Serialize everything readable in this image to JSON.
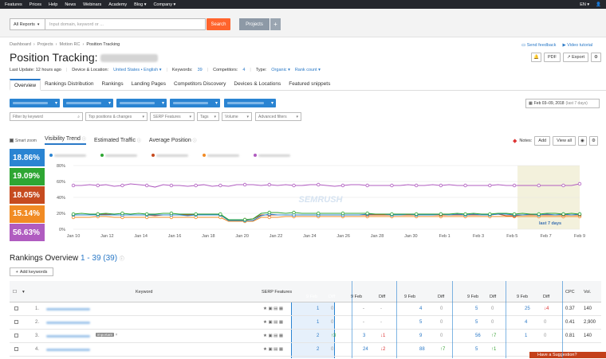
{
  "topnav": {
    "items": [
      "Features",
      "Prices",
      "Help",
      "News",
      "Webinars",
      "Academy",
      "Blog ▾",
      "Company ▾"
    ],
    "lang": "EN ▾"
  },
  "search": {
    "scope": "All Reports",
    "placeholder": "Input domain, keyword or ...",
    "button": "Search",
    "projects": "Projects",
    "plus": "+"
  },
  "breadcrumb": [
    "Dashboard",
    "Projects",
    "Motion RC",
    "Position Tracking"
  ],
  "page": {
    "title": "Position Tracking:",
    "last_update": "Last Update: 12 hours ago",
    "device_label": "Device & Location:",
    "device_value": "United States • English ▾",
    "keywords_label": "Keywords:",
    "keywords_value": "39",
    "competitors_label": "Competitors:",
    "competitors_value": "4",
    "type_label": "Type:",
    "type_value": "Organic ▾",
    "rank_count": "Rank count ▾",
    "send_feedback": "Send feedback",
    "video_tutorial": "Video tutorial",
    "pdf": "PDF",
    "export": "Export"
  },
  "tabs": [
    "Overview",
    "Rankings Distribution",
    "Rankings",
    "Landing Pages",
    "Competitors Discovery",
    "Devices & Locations",
    "Featured snippets"
  ],
  "filters": {
    "date_range": "Feb 03–09, 2018",
    "date_sub": "(last 7 days)",
    "keyword_placeholder": "Filter by keyword",
    "dropdowns": [
      "Top positions & changes",
      "SERP Features",
      "Tags",
      "Volume",
      "Advanced filters"
    ]
  },
  "chart_tabs": {
    "smart_zoom": "Smart zoom",
    "visibility": "Visibility Trend",
    "traffic": "Estimated Traffic",
    "position": "Average Position",
    "notes": "Notes:",
    "add": "Add",
    "view_all": "View all"
  },
  "tiles": [
    {
      "value": "18.86%",
      "color": "#2a84d2"
    },
    {
      "value": "19.09%",
      "color": "#2ea633"
    },
    {
      "value": "18.05%",
      "color": "#c64b1f"
    },
    {
      "value": "15.14%",
      "color": "#f18b24"
    },
    {
      "value": "56.63%",
      "color": "#b05cc0"
    }
  ],
  "chart_data": {
    "type": "line",
    "ylim": [
      0,
      80
    ],
    "yticks": [
      "80%",
      "60%",
      "40%",
      "20%",
      "0%"
    ],
    "xticks": [
      "Jan 10",
      "Jan 12",
      "Jan 14",
      "Jan 16",
      "Jan 18",
      "Jan 20",
      "Jan 22",
      "Jan 24",
      "Jan 26",
      "Jan 28",
      "Jan 30",
      "Feb 1",
      "Feb 3",
      "Feb 5",
      "Feb 7",
      "Feb 9"
    ],
    "highlight_label": "last 7 days",
    "series": [
      {
        "color": "#b05cc0",
        "values": [
          55,
          55,
          56,
          55,
          56,
          54,
          55,
          57,
          56,
          55,
          53,
          56,
          55,
          55,
          54,
          55,
          56,
          54,
          55,
          54,
          56,
          56,
          56,
          55,
          56,
          55,
          56,
          55,
          55,
          56,
          56,
          55,
          54,
          55,
          56,
          56,
          55,
          55,
          55,
          55,
          55,
          56,
          55,
          55,
          56,
          55,
          56,
          55,
          55,
          55,
          55,
          55,
          56,
          55,
          55,
          55,
          55,
          55,
          55,
          55,
          55,
          55,
          57
        ]
      },
      {
        "color": "#2ea633",
        "values": [
          19,
          20,
          19,
          19,
          20,
          19,
          20,
          19,
          20,
          19,
          19,
          20,
          20,
          19,
          19,
          19,
          19,
          19,
          19,
          12,
          12,
          12,
          13,
          20,
          21,
          21,
          20,
          21,
          20,
          20,
          20,
          20,
          20,
          20,
          20,
          20,
          20,
          19,
          19,
          19,
          19,
          19,
          19,
          19,
          19,
          19,
          19,
          20,
          19,
          20,
          19,
          19,
          20,
          20,
          19,
          20,
          19,
          19,
          20,
          20,
          19,
          20,
          19
        ]
      },
      {
        "color": "#2a84d2",
        "values": [
          18,
          18,
          18,
          18,
          18,
          18,
          18,
          18,
          18,
          18,
          18,
          18,
          18,
          18,
          17,
          18,
          18,
          18,
          18,
          11,
          11,
          11,
          11,
          17,
          19,
          18,
          18,
          18,
          18,
          18,
          18,
          18,
          18,
          18,
          18,
          18,
          19,
          19,
          19,
          18,
          18,
          19,
          18,
          18,
          18,
          19,
          18,
          19,
          18,
          19,
          18,
          18,
          19,
          19,
          18,
          18,
          19,
          18,
          19,
          18,
          19,
          18,
          19
        ]
      },
      {
        "color": "#c64b1f",
        "values": [
          18,
          18,
          18,
          19,
          19,
          18,
          18,
          18,
          18,
          18,
          17,
          18,
          18,
          18,
          18,
          18,
          18,
          18,
          18,
          12,
          12,
          12,
          13,
          18,
          18,
          18,
          18,
          18,
          18,
          18,
          18,
          18,
          18,
          18,
          18,
          18,
          18,
          18,
          18,
          18,
          18,
          18,
          18,
          18,
          18,
          18,
          18,
          18,
          18,
          18,
          18,
          18,
          19,
          17,
          17,
          18,
          18,
          18,
          18,
          18,
          18,
          18,
          18
        ]
      },
      {
        "color": "#f18b24",
        "values": [
          15,
          15,
          15,
          16,
          16,
          15,
          15,
          15,
          15,
          15,
          15,
          15,
          15,
          15,
          15,
          15,
          15,
          15,
          15,
          10,
          10,
          10,
          10,
          15,
          15,
          15,
          16,
          16,
          16,
          16,
          16,
          16,
          16,
          16,
          16,
          16,
          16,
          16,
          16,
          16,
          16,
          16,
          16,
          16,
          16,
          16,
          16,
          16,
          16,
          16,
          16,
          16,
          16,
          16,
          16,
          16,
          16,
          16,
          16,
          16,
          16,
          16,
          16
        ]
      }
    ]
  },
  "rankings": {
    "title": "Rankings Overview",
    "count": "1 - 39 (39)",
    "add_keywords": "Add keywords",
    "head": {
      "keyword": "Keyword",
      "serp": "SERP Features",
      "date": "9 Feb",
      "diff": "Diff",
      "cpc": "CPC",
      "vol": "Vol."
    },
    "rows": [
      {
        "n": "1.",
        "tag": "",
        "c1": "1",
        "d1": "0",
        "c2": "-",
        "d2": "-",
        "c3": "4",
        "d3": "0",
        "c4": "5",
        "d4": "0",
        "c5": "25",
        "d5": "↓4",
        "cpc": "0.37",
        "vol": "140"
      },
      {
        "n": "2.",
        "tag": "",
        "c1": "1",
        "d1": "0",
        "c2": "-",
        "d2": "-",
        "c3": "5",
        "d3": "0",
        "c4": "5",
        "d4": "0",
        "c5": "4",
        "d5": "0",
        "cpc": "0.41",
        "vol": "2,900"
      },
      {
        "n": "3.",
        "tag": "important",
        "c1": "2",
        "d1": "↑3",
        "c2": "3",
        "d2": "↓1",
        "c3": "9",
        "d3": "0",
        "c4": "56",
        "d4": "↑7",
        "c5": "1",
        "d5": "0",
        "cpc": "0.81",
        "vol": "140"
      },
      {
        "n": "4.",
        "tag": "",
        "c1": "2",
        "d1": "0",
        "c2": "24",
        "d2": "↓2",
        "c3": "88",
        "d3": "↑7",
        "c4": "5",
        "d4": "↑1",
        "c5": "",
        "d5": "",
        "cpc": "",
        "vol": ""
      }
    ]
  },
  "suggestion": "Have a Suggestion?"
}
